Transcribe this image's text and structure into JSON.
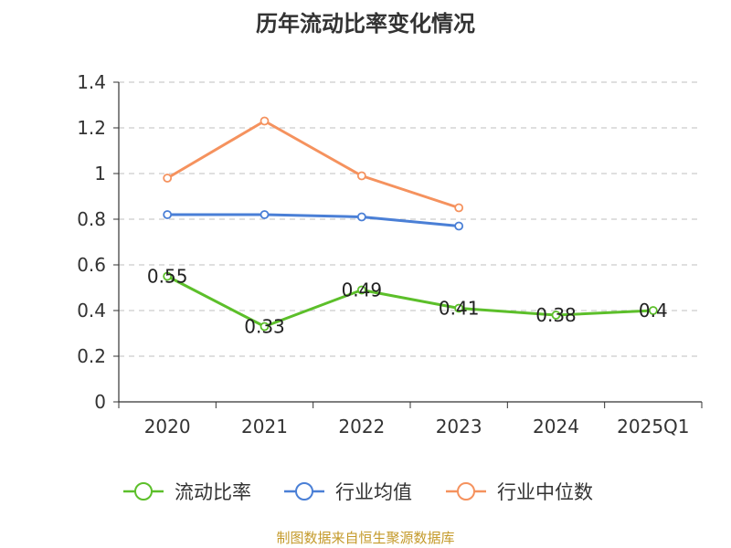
{
  "chart_data": {
    "type": "line",
    "title": "历年流动比率变化情况",
    "categories": [
      "2020",
      "2021",
      "2022",
      "2023",
      "2024",
      "2025Q1"
    ],
    "ylim": [
      0,
      1.4
    ],
    "yticks": [
      "0",
      "0.2",
      "0.4",
      "0.6",
      "0.8",
      "1",
      "1.2",
      "1.4"
    ],
    "grid": true,
    "legend_position": "bottom",
    "series": [
      {
        "name": "流动比率",
        "color": "#5cbf2a",
        "values": [
          0.55,
          0.33,
          0.49,
          0.41,
          0.38,
          0.4
        ],
        "labels": [
          "0.55",
          "0.33",
          "0.49",
          "0.41",
          "0.38",
          "0.4"
        ]
      },
      {
        "name": "行业均值",
        "color": "#4a7fd6",
        "values": [
          0.82,
          0.82,
          0.81,
          0.77,
          null,
          null
        ]
      },
      {
        "name": "行业中位数",
        "color": "#f5925e",
        "values": [
          0.98,
          1.23,
          0.99,
          0.85,
          null,
          null
        ]
      }
    ]
  },
  "footer": {
    "text": "制图数据来自恒生聚源数据库",
    "color": "#c49a2a"
  }
}
